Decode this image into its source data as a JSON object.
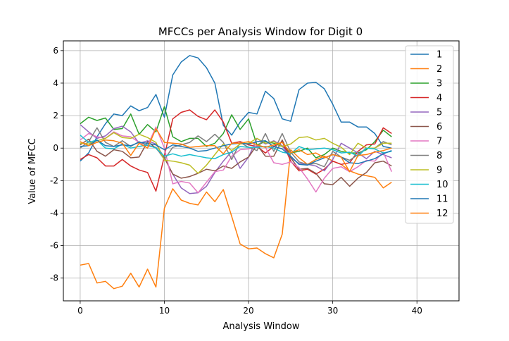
{
  "chart_data": {
    "type": "line",
    "title": "MFCCs per Analysis Window for Digit 0",
    "xlabel": "Analysis Window",
    "ylabel": "Value of MFCC",
    "xlim": [
      -2,
      45
    ],
    "ylim": [
      -9.4,
      6.6
    ],
    "xticks": [
      0,
      10,
      20,
      30,
      40
    ],
    "yticks": [
      -8,
      -6,
      -4,
      -2,
      0,
      2,
      4,
      6
    ],
    "grid": true,
    "legend_position": "top-right",
    "series": [
      {
        "name": "1",
        "color": "#1f77b4",
        "values": [
          -0.8,
          -0.3,
          0.7,
          1.5,
          2.1,
          2.0,
          2.6,
          2.3,
          2.5,
          3.3,
          1.9,
          4.5,
          5.3,
          5.7,
          5.55,
          4.95,
          4.0,
          1.4,
          0.8,
          1.6,
          2.2,
          2.1,
          3.5,
          3.05,
          1.8,
          1.65,
          3.6,
          4.0,
          4.05,
          3.65,
          2.7,
          1.6,
          1.6,
          1.3,
          1.3,
          0.9,
          0.1,
          0.0
        ]
      },
      {
        "name": "2",
        "color": "#ff7f0e",
        "values": [
          -7.2,
          -7.1,
          -8.3,
          -8.2,
          -8.65,
          -8.5,
          -7.7,
          -8.55,
          -7.45,
          -8.55,
          -3.7,
          -2.5,
          -3.2,
          -3.4,
          -3.5,
          -2.7,
          -3.3,
          -2.55,
          -4.2,
          -5.9,
          -6.2,
          -6.15,
          -6.5,
          -6.75,
          -5.3,
          -0.1,
          -0.6,
          -1.0,
          -0.7,
          -0.5,
          -0.8,
          -1.0,
          -1.4,
          -1.6,
          -1.7,
          -1.8,
          -2.45,
          -2.1
        ]
      },
      {
        "name": "3",
        "color": "#2ca02c",
        "values": [
          1.5,
          1.9,
          1.7,
          1.85,
          1.15,
          1.2,
          2.1,
          0.85,
          1.45,
          1.0,
          2.55,
          0.7,
          0.4,
          0.6,
          0.6,
          0.1,
          0.3,
          0.9,
          2.05,
          1.15,
          1.8,
          0.2,
          0.4,
          0.3,
          0.1,
          -0.3,
          -0.2,
          0.0,
          -0.6,
          -0.4,
          0.0,
          -0.2,
          -0.3,
          -0.3,
          -0.1,
          0.4,
          1.1,
          0.7
        ]
      },
      {
        "name": "4",
        "color": "#d62728",
        "values": [
          -0.7,
          -0.4,
          -0.6,
          -1.1,
          -1.1,
          -0.7,
          -1.1,
          -1.35,
          -1.5,
          -2.65,
          -0.5,
          1.8,
          2.2,
          2.35,
          1.95,
          1.75,
          2.35,
          1.6,
          0.3,
          0.4,
          0.2,
          0.1,
          -0.3,
          0.1,
          0.4,
          -0.8,
          -1.4,
          -1.3,
          -1.6,
          -1.3,
          -0.8,
          -1.0,
          -0.9,
          -0.2,
          0.2,
          0.25,
          1.25,
          0.9
        ]
      },
      {
        "name": "5",
        "color": "#9467bd",
        "values": [
          1.45,
          1.0,
          0.6,
          0.75,
          1.2,
          1.35,
          1.0,
          0.3,
          0.45,
          0.25,
          -0.6,
          -1.6,
          -2.45,
          -2.8,
          -2.75,
          -2.35,
          -1.5,
          -0.8,
          -0.2,
          -1.25,
          -0.55,
          0.6,
          0.25,
          0.45,
          0.15,
          -0.6,
          -0.95,
          -1.0,
          -1.1,
          -1.4,
          -0.7,
          0.3,
          0.0,
          -0.3,
          -0.65,
          -0.2,
          -0.4,
          -0.6
        ]
      },
      {
        "name": "6",
        "color": "#8c564b",
        "values": [
          0.2,
          0.55,
          -0.2,
          -0.5,
          -0.1,
          -0.2,
          -0.6,
          -0.55,
          0.4,
          0.0,
          -0.6,
          -1.6,
          -1.85,
          -1.75,
          -1.55,
          -1.3,
          -1.4,
          -1.1,
          -1.25,
          -0.85,
          -0.55,
          0.2,
          -0.5,
          -0.5,
          0.5,
          -0.6,
          -1.3,
          -1.25,
          -1.55,
          -2.2,
          -2.25,
          -1.8,
          -2.35,
          -1.85,
          -1.5,
          -0.9,
          -0.8,
          -1.1
        ]
      },
      {
        "name": "7",
        "color": "#e377c2",
        "values": [
          0.5,
          0.9,
          0.7,
          0.6,
          1.0,
          0.75,
          0.7,
          0.35,
          0.15,
          1.3,
          0.0,
          -2.2,
          -2.05,
          -2.15,
          -2.75,
          -2.1,
          -1.45,
          -1.35,
          -0.5,
          -0.1,
          -0.05,
          0.15,
          0.05,
          -0.9,
          -1.0,
          -0.85,
          -1.2,
          -1.9,
          -2.7,
          -1.85,
          -1.25,
          -1.15,
          -1.45,
          -1.15,
          -0.75,
          -0.8,
          -0.25,
          -1.45
        ]
      },
      {
        "name": "8",
        "color": "#7f7f7f",
        "values": [
          0.0,
          0.4,
          1.25,
          0.35,
          0.1,
          0.45,
          0.1,
          0.4,
          0.15,
          0.05,
          -0.7,
          0.05,
          0.2,
          0.35,
          0.75,
          0.4,
          0.85,
          0.35,
          -0.7,
          0.35,
          0.05,
          -0.15,
          0.9,
          -0.2,
          0.9,
          -0.25,
          -0.85,
          -1.0,
          -0.95,
          -1.15,
          -0.2,
          -0.55,
          -0.75,
          -0.4,
          0.0,
          0.0,
          0.4,
          0.2
        ]
      },
      {
        "name": "9",
        "color": "#bcbd22",
        "values": [
          0.3,
          0.25,
          0.45,
          0.6,
          0.95,
          0.65,
          0.6,
          0.85,
          0.65,
          0.35,
          -0.75,
          -0.8,
          -0.9,
          -1.05,
          -1.55,
          -1.05,
          -0.4,
          0.25,
          -0.15,
          0.25,
          0.3,
          0.6,
          0.3,
          0.4,
          0.1,
          0.25,
          0.65,
          0.7,
          0.5,
          0.6,
          0.3,
          0.05,
          -0.4,
          0.3,
          0.0,
          0.0,
          0.3,
          0.3
        ]
      },
      {
        "name": "10",
        "color": "#17becf",
        "values": [
          0.8,
          0.35,
          0.5,
          0.0,
          -0.05,
          0.25,
          0.0,
          0.1,
          0.2,
          0.0,
          -0.5,
          -0.35,
          -0.5,
          -0.4,
          -0.5,
          -0.6,
          -0.65,
          -0.4,
          -0.25,
          0.1,
          0.05,
          0.05,
          0.1,
          0.0,
          -0.25,
          -0.35,
          0.1,
          -0.1,
          -0.05,
          0.0,
          -0.1,
          -0.3,
          -0.25,
          -0.5,
          0.0,
          -0.05,
          -0.3,
          -0.2
        ]
      },
      {
        "name": "11",
        "color": "#1f77b4",
        "values": [
          0.1,
          0.15,
          0.5,
          0.15,
          0.1,
          0.2,
          0.15,
          0.35,
          0.3,
          0.2,
          -0.1,
          0.2,
          0.1,
          0.0,
          -0.2,
          -0.15,
          0.0,
          0.15,
          0.25,
          0.3,
          0.25,
          0.4,
          0.45,
          0.1,
          -0.05,
          -0.5,
          -1.0,
          -1.05,
          -0.8,
          -0.6,
          -0.4,
          -0.55,
          -0.9,
          -0.95,
          -0.8,
          -0.65,
          -0.35,
          -0.15
        ]
      },
      {
        "name": "12",
        "color": "#ff7f0e",
        "values": [
          0.4,
          0.15,
          0.35,
          0.5,
          0.45,
          0.3,
          -0.45,
          0.3,
          0.0,
          1.2,
          0.35,
          0.3,
          0.25,
          0.05,
          0.1,
          0.15,
          0.15,
          -0.35,
          0.3,
          0.3,
          0.4,
          0.2,
          0.05,
          0.2,
          0.35,
          -0.3,
          -0.1,
          -0.4,
          -0.3,
          -0.6,
          -0.4,
          -0.55,
          -1.45,
          -0.45,
          -0.4,
          -0.25,
          -0.15,
          0.0
        ]
      }
    ]
  }
}
